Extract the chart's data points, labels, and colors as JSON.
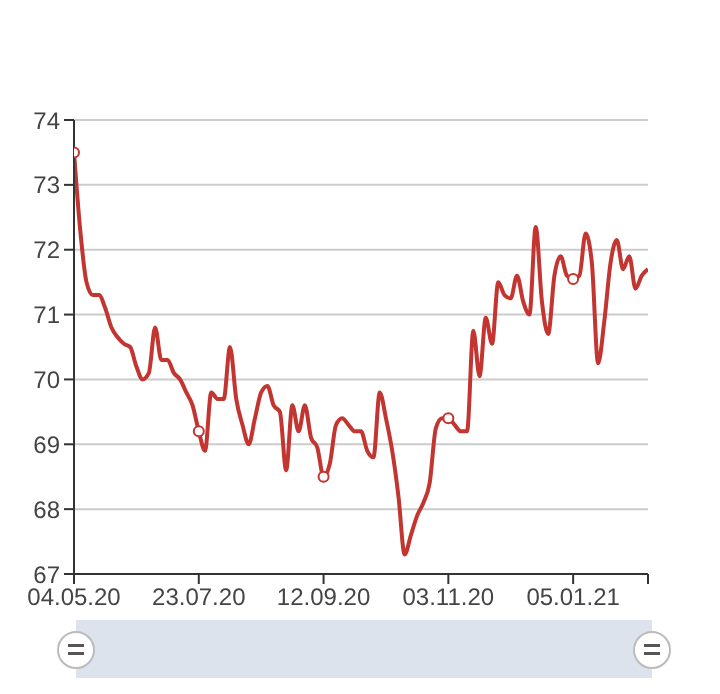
{
  "chart_data": {
    "type": "line",
    "categories": [
      "04.05.20",
      null,
      null,
      null,
      null,
      null,
      null,
      null,
      null,
      null,
      null,
      null,
      null,
      null,
      null,
      null,
      null,
      null,
      null,
      null,
      "23.07.20",
      null,
      null,
      null,
      null,
      null,
      null,
      null,
      null,
      null,
      null,
      null,
      null,
      null,
      null,
      null,
      null,
      null,
      null,
      null,
      "12.09.20",
      null,
      null,
      null,
      null,
      null,
      null,
      null,
      null,
      null,
      null,
      null,
      null,
      null,
      null,
      null,
      null,
      null,
      null,
      null,
      "03.11.20",
      null,
      null,
      null,
      null,
      null,
      null,
      null,
      null,
      null,
      null,
      null,
      null,
      null,
      null,
      null,
      null,
      null,
      null,
      null,
      "05.01.21",
      null,
      null,
      null,
      null,
      null,
      null,
      null,
      null,
      null,
      null,
      null,
      null
    ],
    "series": [
      {
        "color": "#c23531",
        "values": [
          73.5,
          72.3,
          71.5,
          71.3,
          71.3,
          71.1,
          70.8,
          70.65,
          70.55,
          70.5,
          70.2,
          70.0,
          70.1,
          70.8,
          70.3,
          70.3,
          70.1,
          70.0,
          69.8,
          69.6,
          69.2,
          68.9,
          69.8,
          69.7,
          69.7,
          70.5,
          69.7,
          69.3,
          69.0,
          69.4,
          69.8,
          69.9,
          69.6,
          69.5,
          68.6,
          69.6,
          69.2,
          69.6,
          69.1,
          68.95,
          68.5,
          68.7,
          69.3,
          69.4,
          69.3,
          69.2,
          69.2,
          68.9,
          68.8,
          69.8,
          69.4,
          68.9,
          68.2,
          67.3,
          67.6,
          67.9,
          68.1,
          68.4,
          69.25,
          69.4,
          69.4,
          69.3,
          69.2,
          69.2,
          70.75,
          70.05,
          70.95,
          70.55,
          71.5,
          71.3,
          71.25,
          71.6,
          71.2,
          71.0,
          72.35,
          71.2,
          70.7,
          71.6,
          71.9,
          71.6,
          71.55,
          71.6,
          72.25,
          71.8,
          70.25,
          70.9,
          71.8,
          72.15,
          71.7,
          71.9,
          71.4,
          71.6,
          71.7
        ]
      }
    ],
    "ylim": [
      67,
      74
    ],
    "yticks": [
      67,
      68,
      69,
      70,
      71,
      72,
      73,
      74
    ],
    "grid": "y",
    "line_style": "solid"
  }
}
